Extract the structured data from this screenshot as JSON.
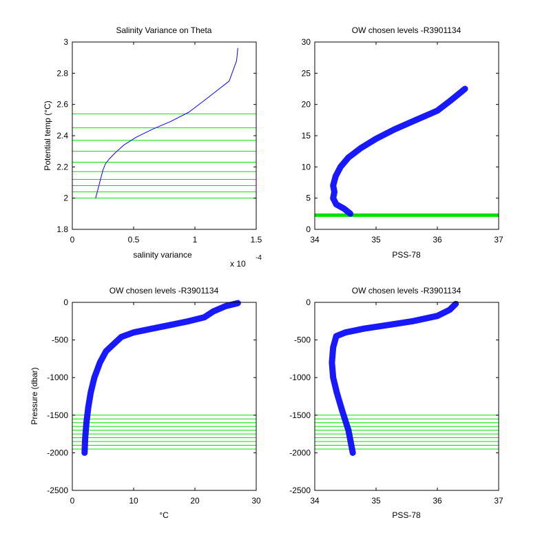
{
  "chart_data": [
    {
      "type": "line",
      "title": "Salinity Variance on Theta",
      "xlabel": "salinity variance",
      "ylabel": "Potential temp (°C)",
      "x_scale_label": "x 10",
      "x_scale_exponent": "-4",
      "xlim": [
        0,
        1.5
      ],
      "ylim": [
        1.8,
        3.0
      ],
      "xticks": [
        0,
        0.5,
        1,
        1.5
      ],
      "xtick_labels": [
        "0",
        "0.5",
        "1",
        "1.5"
      ],
      "yticks": [
        1.8,
        2.0,
        2.2,
        2.4,
        2.6,
        2.8,
        3.0
      ],
      "ytick_labels": [
        "1.8",
        "2",
        "2.2",
        "2.4",
        "2.6",
        "2.8",
        "3"
      ],
      "series": [
        {
          "color": "#0000ff",
          "x": [
            0.19,
            0.21,
            0.23,
            0.25,
            0.27,
            0.3,
            0.35,
            0.42,
            0.52,
            0.65,
            0.8,
            0.95,
            1.1,
            1.28,
            1.34,
            1.35
          ],
          "y": [
            2.0,
            2.06,
            2.12,
            2.18,
            2.22,
            2.25,
            2.29,
            2.34,
            2.39,
            2.44,
            2.49,
            2.55,
            2.64,
            2.75,
            2.88,
            2.96
          ]
        }
      ],
      "hlines": {
        "color": "#00e000",
        "y": [
          2.0,
          2.04,
          2.08,
          2.12,
          2.17,
          2.23,
          2.3,
          2.37,
          2.45,
          2.54
        ]
      }
    },
    {
      "type": "line",
      "title": "OW chosen levels -R3901134",
      "xlabel": "PSS-78",
      "ylabel": "",
      "xlim": [
        34,
        37
      ],
      "ylim": [
        0,
        30
      ],
      "xticks": [
        34,
        35,
        36,
        37
      ],
      "xtick_labels": [
        "34",
        "35",
        "36",
        "37"
      ],
      "yticks": [
        0,
        5,
        10,
        15,
        20,
        25,
        30
      ],
      "ytick_labels": [
        "0",
        "5",
        "10",
        "15",
        "20",
        "25",
        "30"
      ],
      "series": [
        {
          "color": "#0000ff",
          "x": [
            34.58,
            34.48,
            34.35,
            34.3,
            34.32,
            34.3,
            34.34,
            34.42,
            34.55,
            34.75,
            35.0,
            35.3,
            35.65,
            36.0,
            36.2,
            36.45
          ],
          "y": [
            2.5,
            3.3,
            4.0,
            5.0,
            6.0,
            7.0,
            8.5,
            10.0,
            11.5,
            13.0,
            14.5,
            16.0,
            17.5,
            19.0,
            20.5,
            22.5
          ]
        }
      ],
      "band": {
        "color": "#00e000",
        "y": [
          2.0,
          2.55
        ]
      }
    },
    {
      "type": "line",
      "title": "OW chosen levels -R3901134",
      "xlabel": "°C",
      "ylabel": "Pressure (dbar)",
      "xlim": [
        0,
        30
      ],
      "ylim": [
        -2500,
        0
      ],
      "xticks": [
        0,
        10,
        20,
        30
      ],
      "xtick_labels": [
        "0",
        "10",
        "20",
        "30"
      ],
      "yticks": [
        -2500,
        -2000,
        -1500,
        -1000,
        -500,
        0
      ],
      "ytick_labels": [
        "-2500",
        "-2000",
        "-1500",
        "-1000",
        "-500",
        "0"
      ],
      "series": [
        {
          "color": "#0000ff",
          "x": [
            2.0,
            2.1,
            2.3,
            2.6,
            3.0,
            3.6,
            4.5,
            5.5,
            6.8,
            8.0,
            10.0,
            13.0,
            16.0,
            19.0,
            21.5,
            23.0,
            25.0,
            27.0
          ],
          "y": [
            -2000,
            -1800,
            -1600,
            -1400,
            -1200,
            -1000,
            -800,
            -650,
            -550,
            -460,
            -400,
            -350,
            -300,
            -250,
            -200,
            -120,
            -50,
            -10
          ]
        }
      ],
      "hlines": {
        "color": "#00e000",
        "y": [
          -1500,
          -1550,
          -1600,
          -1650,
          -1700,
          -1750,
          -1800,
          -1850,
          -1900,
          -1950
        ]
      }
    },
    {
      "type": "line",
      "title": "OW chosen levels -R3901134",
      "xlabel": "PSS-78",
      "ylabel": "",
      "xlim": [
        34,
        37
      ],
      "ylim": [
        -2500,
        0
      ],
      "xticks": [
        34,
        35,
        36,
        37
      ],
      "xtick_labels": [
        "34",
        "35",
        "36",
        "37"
      ],
      "yticks": [
        -2500,
        -2000,
        -1500,
        -1000,
        -500,
        0
      ],
      "ytick_labels": [
        "-2500",
        "-2000",
        "-1500",
        "-1000",
        "-500",
        "0"
      ],
      "series": [
        {
          "color": "#0000ff",
          "x": [
            34.62,
            34.55,
            34.45,
            34.36,
            34.3,
            34.28,
            34.3,
            34.35,
            34.5,
            34.8,
            35.2,
            35.6,
            36.0,
            36.2,
            36.3
          ],
          "y": [
            -2000,
            -1700,
            -1450,
            -1200,
            -1000,
            -800,
            -600,
            -450,
            -400,
            -350,
            -300,
            -250,
            -180,
            -100,
            -20
          ]
        }
      ],
      "hlines": {
        "color": "#00e000",
        "y": [
          -1500,
          -1550,
          -1600,
          -1650,
          -1700,
          -1750,
          -1800,
          -1850,
          -1900,
          -1950
        ]
      }
    }
  ]
}
